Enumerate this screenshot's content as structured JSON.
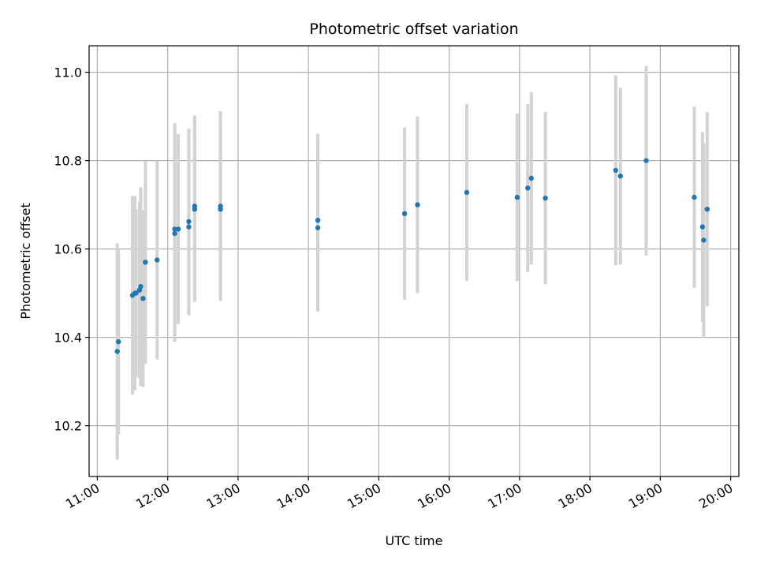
{
  "chart_data": {
    "type": "scatter",
    "title": "Photometric offset variation",
    "xlabel": "UTC time",
    "ylabel": "Photometric offset",
    "grid": true,
    "legend": "none",
    "xlim": [
      "10:53",
      "20:07"
    ],
    "ylim": [
      10.085,
      11.06
    ],
    "x_ticks": [
      "11:00",
      "12:00",
      "13:00",
      "14:00",
      "15:00",
      "16:00",
      "17:00",
      "18:00",
      "19:00",
      "20:00"
    ],
    "y_ticks": [
      10.2,
      10.4,
      10.6,
      10.8,
      11.0
    ],
    "y_tick_labels": [
      "10.2",
      "10.4",
      "10.6",
      "10.8",
      "11.0"
    ],
    "colors": {
      "point": "#1f77b4",
      "errorbar": "#d3d3d3",
      "grid": "#b0b0b0"
    },
    "points": [
      {
        "x": "11:17",
        "y": 10.368,
        "yerr": 0.245
      },
      {
        "x": "11:18",
        "y": 10.39,
        "yerr": 0.21
      },
      {
        "x": "11:30",
        "y": 10.495,
        "yerr": 0.225
      },
      {
        "x": "11:32",
        "y": 10.5,
        "yerr": 0.22
      },
      {
        "x": "11:33",
        "y": 10.5,
        "yerr": 0.19
      },
      {
        "x": "11:36",
        "y": 10.507,
        "yerr": 0.2
      },
      {
        "x": "11:37",
        "y": 10.515,
        "yerr": 0.225
      },
      {
        "x": "11:39",
        "y": 10.488,
        "yerr": 0.2
      },
      {
        "x": "11:41",
        "y": 10.57,
        "yerr": 0.23
      },
      {
        "x": "11:51",
        "y": 10.575,
        "yerr": 0.225
      },
      {
        "x": "12:06",
        "y": 10.635,
        "yerr": 0.245
      },
      {
        "x": "12:06",
        "y": 10.645,
        "yerr": 0.24
      },
      {
        "x": "12:09",
        "y": 10.645,
        "yerr": 0.215
      },
      {
        "x": "12:18",
        "y": 10.65,
        "yerr": 0.2
      },
      {
        "x": "12:18",
        "y": 10.662,
        "yerr": 0.21
      },
      {
        "x": "12:23",
        "y": 10.69,
        "yerr": 0.21
      },
      {
        "x": "12:23",
        "y": 10.697,
        "yerr": 0.205
      },
      {
        "x": "12:45",
        "y": 10.69,
        "yerr": 0.2
      },
      {
        "x": "12:45",
        "y": 10.697,
        "yerr": 0.215
      },
      {
        "x": "14:08",
        "y": 10.665,
        "yerr": 0.195
      },
      {
        "x": "14:08",
        "y": 10.648,
        "yerr": 0.19
      },
      {
        "x": "15:22",
        "y": 10.68,
        "yerr": 0.195
      },
      {
        "x": "15:33",
        "y": 10.7,
        "yerr": 0.2
      },
      {
        "x": "16:15",
        "y": 10.728,
        "yerr": 0.2
      },
      {
        "x": "16:58",
        "y": 10.717,
        "yerr": 0.19
      },
      {
        "x": "17:07",
        "y": 10.738,
        "yerr": 0.19
      },
      {
        "x": "17:10",
        "y": 10.76,
        "yerr": 0.195
      },
      {
        "x": "17:22",
        "y": 10.715,
        "yerr": 0.195
      },
      {
        "x": "18:22",
        "y": 10.778,
        "yerr": 0.215
      },
      {
        "x": "18:26",
        "y": 10.765,
        "yerr": 0.2
      },
      {
        "x": "18:48",
        "y": 10.8,
        "yerr": 0.215
      },
      {
        "x": "19:29",
        "y": 10.717,
        "yerr": 0.205
      },
      {
        "x": "19:36",
        "y": 10.65,
        "yerr": 0.215
      },
      {
        "x": "19:37",
        "y": 10.62,
        "yerr": 0.22
      },
      {
        "x": "19:40",
        "y": 10.69,
        "yerr": 0.22
      }
    ]
  }
}
